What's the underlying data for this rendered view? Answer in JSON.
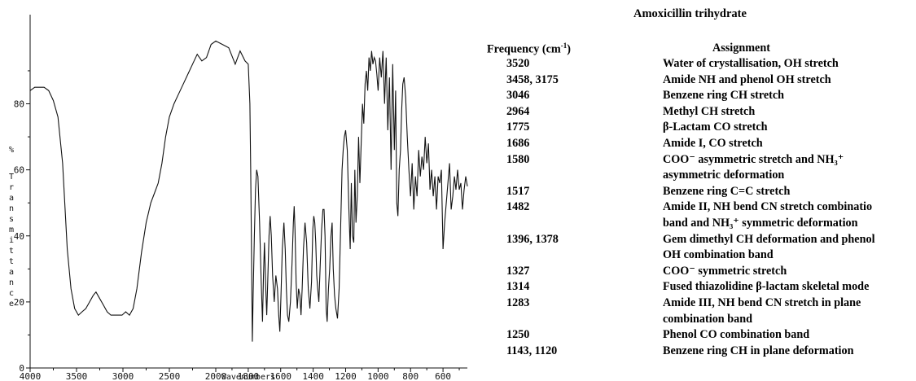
{
  "chart_data": {
    "type": "line",
    "xlabel": "Wavenumbers",
    "ylabel": "% Transmittance",
    "ylabel_text": "%",
    "ylabel_vertical": "Transmittance",
    "xlim": [
      4000,
      450
    ],
    "ylim": [
      0,
      100
    ],
    "x_ticks": [
      "4000",
      "3500",
      "3000",
      "2500",
      "2000",
      "1800",
      "1600",
      "1400",
      "1200",
      "1000",
      "800",
      "600"
    ],
    "x_tick_values": [
      4000,
      3500,
      3000,
      2500,
      2000,
      1800,
      1600,
      1400,
      1200,
      1000,
      800,
      600
    ],
    "y_ticks": [
      "0",
      "20",
      "40",
      "60",
      "80"
    ],
    "y_tick_values": [
      0,
      20,
      40,
      60,
      80
    ],
    "x_axis_split": 2000,
    "grid": false,
    "series": [
      {
        "color": "#111111",
        "x": [
          4000,
          3950,
          3900,
          3850,
          3800,
          3750,
          3700,
          3650,
          3600,
          3560,
          3520,
          3480,
          3440,
          3400,
          3360,
          3320,
          3290,
          3250,
          3210,
          3170,
          3130,
          3090,
          3050,
          3010,
          2970,
          2930,
          2890,
          2850,
          2800,
          2750,
          2700,
          2660,
          2620,
          2580,
          2540,
          2500,
          2450,
          2400,
          2350,
          2300,
          2250,
          2200,
          2150,
          2100,
          2050,
          2000,
          1960,
          1920,
          1880,
          1850,
          1820,
          1800,
          1790,
          1785,
          1780,
          1775,
          1770,
          1762,
          1755,
          1748,
          1740,
          1730,
          1720,
          1712,
          1706,
          1700,
          1692,
          1686,
          1680,
          1672,
          1665,
          1658,
          1650,
          1640,
          1630,
          1620,
          1612,
          1605,
          1598,
          1590,
          1580,
          1572,
          1565,
          1558,
          1550,
          1540,
          1530,
          1522,
          1517,
          1512,
          1505,
          1498,
          1490,
          1482,
          1475,
          1468,
          1460,
          1450,
          1440,
          1430,
          1420,
          1410,
          1402,
          1396,
          1390,
          1384,
          1378,
          1372,
          1365,
          1356,
          1348,
          1340,
          1333,
          1327,
          1320,
          1314,
          1306,
          1298,
          1290,
          1283,
          1276,
          1268,
          1260,
          1250,
          1240,
          1230,
          1222,
          1215,
          1208,
          1200,
          1190,
          1180,
          1172,
          1165,
          1158,
          1150,
          1143,
          1136,
          1128,
          1120,
          1112,
          1104,
          1096,
          1088,
          1080,
          1072,
          1064,
          1056,
          1048,
          1040,
          1032,
          1024,
          1016,
          1008,
          1000,
          990,
          980,
          970,
          960,
          950,
          940,
          930,
          920,
          910,
          900,
          892,
          885,
          878,
          870,
          862,
          855,
          848,
          840,
          830,
          820,
          810,
          800,
          790,
          780,
          770,
          760,
          750,
          740,
          730,
          720,
          710,
          700,
          690,
          680,
          670,
          660,
          650,
          640,
          630,
          620,
          610,
          600,
          590,
          580,
          570,
          560,
          550,
          540,
          530,
          520,
          510,
          500,
          490,
          480,
          470,
          460,
          450
        ],
        "y": [
          84,
          85,
          85,
          85,
          84,
          81,
          76,
          62,
          36,
          24,
          18,
          16,
          17,
          18,
          20,
          22,
          23,
          21,
          19,
          17,
          16,
          16,
          16,
          16,
          17,
          16,
          18,
          24,
          35,
          44,
          50,
          53,
          56,
          62,
          70,
          76,
          80,
          83,
          86,
          89,
          92,
          95,
          93,
          94,
          98,
          99,
          98,
          97,
          92,
          96,
          93,
          92,
          80,
          60,
          35,
          8,
          22,
          40,
          54,
          60,
          58,
          44,
          26,
          14,
          28,
          38,
          24,
          16,
          26,
          40,
          46,
          40,
          28,
          20,
          28,
          24,
          16,
          11,
          22,
          36,
          44,
          36,
          24,
          16,
          14,
          20,
          32,
          44,
          49,
          42,
          26,
          18,
          24,
          22,
          16,
          24,
          36,
          44,
          38,
          24,
          18,
          26,
          42,
          46,
          44,
          38,
          28,
          24,
          20,
          32,
          42,
          48,
          48,
          40,
          18,
          14,
          24,
          30,
          40,
          44,
          30,
          22,
          18,
          15,
          24,
          44,
          60,
          66,
          70,
          72,
          66,
          48,
          36,
          56,
          40,
          38,
          60,
          44,
          52,
          70,
          56,
          68,
          80,
          74,
          86,
          90,
          84,
          94,
          90,
          96,
          92,
          94,
          93,
          89,
          84,
          94,
          88,
          96,
          80,
          94,
          72,
          88,
          60,
          92,
          66,
          84,
          50,
          46,
          60,
          66,
          78,
          86,
          88,
          82,
          70,
          60,
          52,
          62,
          48,
          58,
          52,
          66,
          58,
          64,
          60,
          70,
          62,
          68,
          54,
          60,
          52,
          58,
          48,
          58,
          56,
          60,
          36,
          44,
          50,
          56,
          62,
          48,
          52,
          58,
          54,
          60,
          54,
          56,
          48,
          54,
          58,
          55
        ]
      }
    ]
  },
  "table": {
    "title": "Amoxicillin trihydrate",
    "col_freq_header": "Frequency (cm",
    "col_freq_header_sup": "-1",
    "col_freq_header_end": ")",
    "col_assign_header": "Assignment",
    "rows": [
      {
        "freq": "3520",
        "assign": "Water of crystallisation, OH stretch"
      },
      {
        "freq": "3458, 3175",
        "assign": "Amide NH and phenol OH stretch"
      },
      {
        "freq": "3046",
        "assign": "Benzene ring CH stretch"
      },
      {
        "freq": "2964",
        "assign": "Methyl CH stretch"
      },
      {
        "freq": "1775",
        "assign": "β-Lactam CO stretch"
      },
      {
        "freq": "1686",
        "assign": "Amide I, CO stretch"
      },
      {
        "freq": "1580",
        "assign": "COO⁻ asymmetric stretch and NH₃⁺"
      },
      {
        "freq": "",
        "assign": "asymmetric deformation"
      },
      {
        "freq": "1517",
        "assign": "Benzene ring C=C stretch"
      },
      {
        "freq": "1482",
        "assign": "Amide II, NH bend CN stretch combinatio"
      },
      {
        "freq": "",
        "assign": "band and NH₃⁺ symmetric deformation"
      },
      {
        "freq": "1396, 1378",
        "assign": "Gem dimethyl CH deformation and phenol"
      },
      {
        "freq": "",
        "assign": "OH combination band"
      },
      {
        "freq": "1327",
        "assign": "COO⁻ symmetric stretch"
      },
      {
        "freq": "1314",
        "assign": "Fused thiazolidine β-lactam skeletal mode"
      },
      {
        "freq": "1283",
        "assign": "Amide III, NH bend CN stretch in plane"
      },
      {
        "freq": "",
        "assign": "combination band"
      },
      {
        "freq": "1250",
        "assign": "Phenol CO combination band"
      },
      {
        "freq": "1143, 1120",
        "assign": "Benzene ring CH in plane deformation"
      }
    ]
  }
}
